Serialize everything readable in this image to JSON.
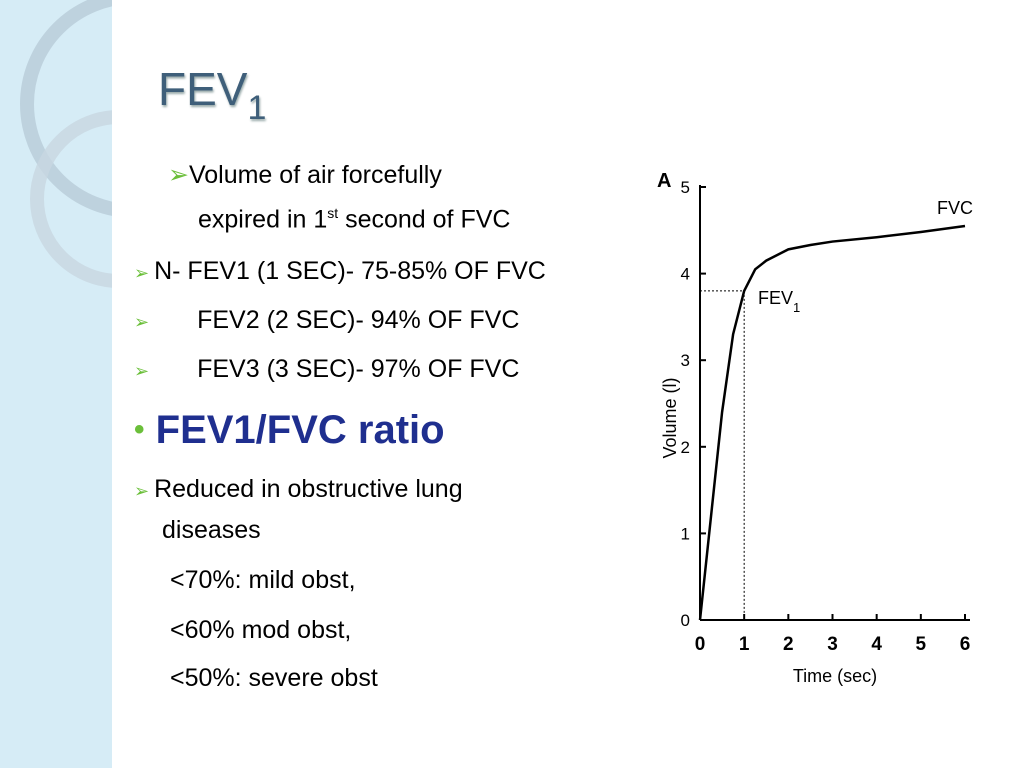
{
  "slide": {
    "title": {
      "text": "FEV",
      "subscript": "1"
    },
    "bullets": [
      {
        "line1": "Volume of air forcefully",
        "line2": "expired in 1",
        "superscript": "st",
        "line2_end": " second of FVC"
      },
      {
        "text": "N- FEV1 (1 SEC)- 75-85% OF FVC"
      },
      {
        "text": "FEV2 (2 SEC)- 94% OF FVC"
      },
      {
        "text": "FEV3 (3 SEC)- 97% OF FVC"
      },
      {
        "text": "FEV1/FVC ratio"
      },
      {
        "line1": "Reduced in obstructive lung",
        "line2": "diseases"
      },
      {
        "text": "<70%: mild obst,"
      },
      {
        "text": "<60% mod obst,"
      },
      {
        "text": "<50%: severe obst"
      }
    ]
  },
  "chart_data": {
    "type": "line",
    "panel_label": "A",
    "ylabel": "Volume (l)",
    "xlabel": "Time (sec)",
    "x": [
      0,
      0.25,
      0.5,
      0.75,
      1,
      1.25,
      1.5,
      2,
      2.5,
      3,
      4,
      5,
      6
    ],
    "values": [
      0,
      1.2,
      2.4,
      3.3,
      3.8,
      4.05,
      4.15,
      4.28,
      4.33,
      4.37,
      4.42,
      4.48,
      4.55
    ],
    "color": "#000000",
    "xlim": [
      0,
      6
    ],
    "ylim": [
      0,
      5
    ],
    "xticks": [
      0,
      1,
      2,
      3,
      4,
      5,
      6
    ],
    "yticks": [
      0,
      1,
      2,
      3,
      4,
      5
    ],
    "annotations": {
      "fvc": "FVC",
      "fev1": {
        "text": "FEV",
        "subscript": "1"
      }
    }
  }
}
